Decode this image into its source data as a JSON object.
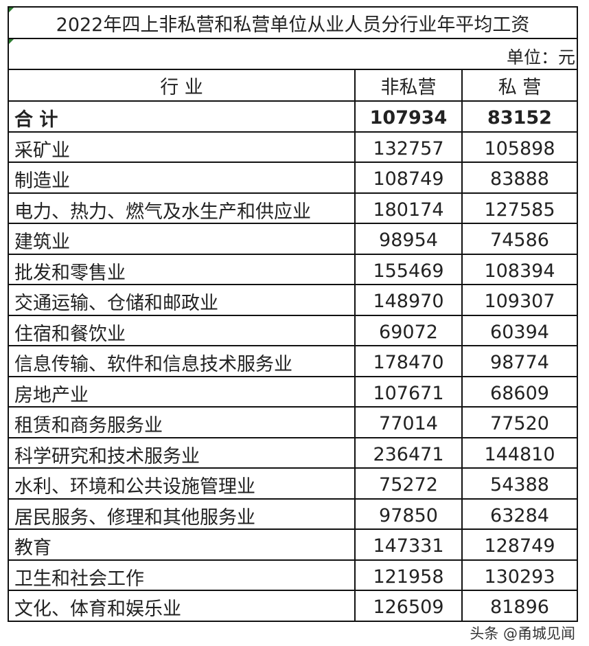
{
  "title": "2022年四上非私营和私营单位从业人员分行业年平均工资",
  "unit": "单位：元",
  "headers": [
    "行 业",
    "非私营",
    "私 营"
  ],
  "rows": [
    {
      "industry": "合 计",
      "non_private": "107934",
      "private": "83152"
    },
    {
      "industry": "采矿业",
      "non_private": "132757",
      "private": "105898"
    },
    {
      "industry": "制造业",
      "non_private": "108749",
      "private": "83888"
    },
    {
      "industry": "电力、热力、燃气及水生产和供应业",
      "non_private": "180174",
      "private": "127585"
    },
    {
      "industry": "建筑业",
      "non_private": "98954",
      "private": "74586"
    },
    {
      "industry": "批发和零售业",
      "non_private": "155469",
      "private": "108394"
    },
    {
      "industry": "交通运输、仓储和邮政业",
      "non_private": "148970",
      "private": "109307"
    },
    {
      "industry": "住宿和餐饮业",
      "non_private": "69072",
      "private": "60394"
    },
    {
      "industry": "信息传输、软件和信息技术服务业",
      "non_private": "178470",
      "private": "98774"
    },
    {
      "industry": "房地产业",
      "non_private": "107671",
      "private": "68609"
    },
    {
      "industry": "租赁和商务服务业",
      "non_private": "77014",
      "private": "77520"
    },
    {
      "industry": "科学研究和技术服务业",
      "non_private": "236471",
      "private": "144810"
    },
    {
      "industry": "水利、环境和公共设施管理业",
      "non_private": "75272",
      "private": "54388"
    },
    {
      "industry": "居民服务、修理和其他服务业",
      "non_private": "97850",
      "private": "63284"
    },
    {
      "industry": "教育",
      "non_private": "147331",
      "private": "128749"
    },
    {
      "industry": "卫生和社会工作",
      "non_private": "121958",
      "private": "130293"
    },
    {
      "industry": "文化、体育和娱乐业",
      "non_private": "126509",
      "private": "81896"
    }
  ],
  "watermark": "头条 @甬城见闻"
}
